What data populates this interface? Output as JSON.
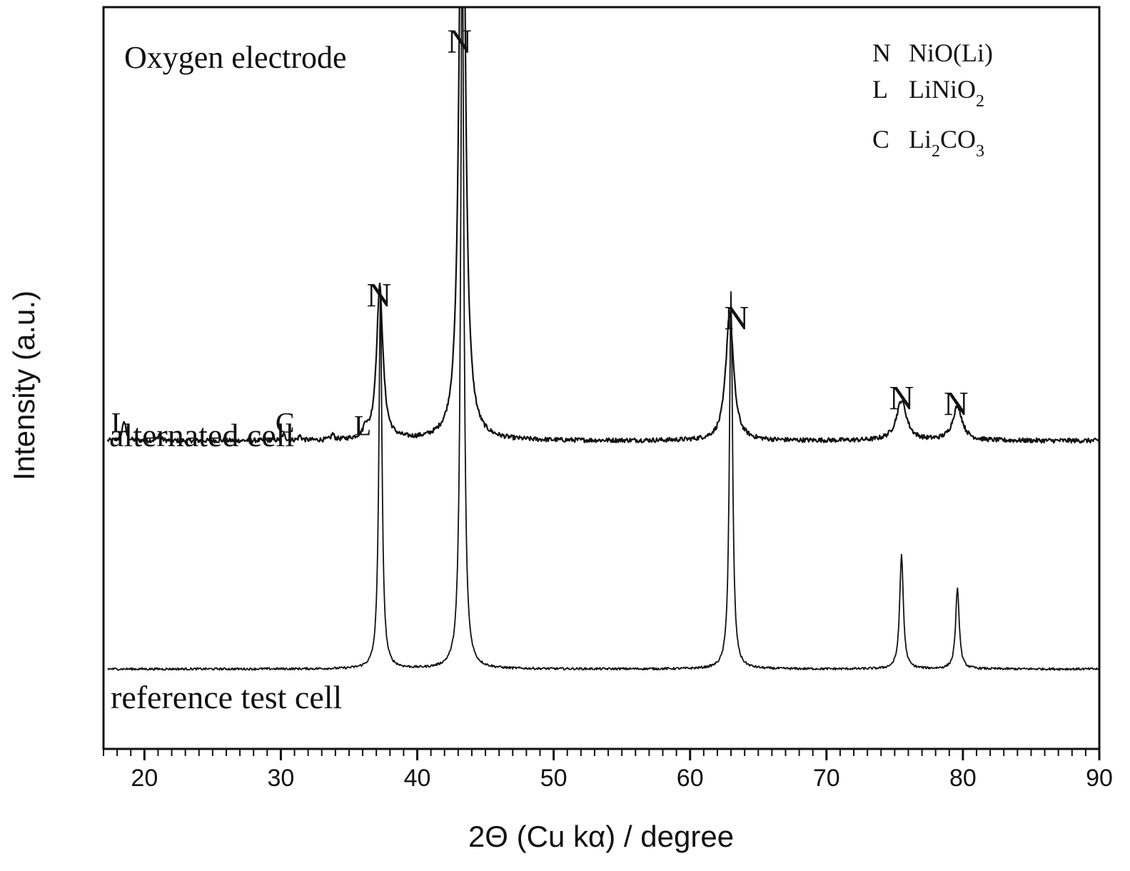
{
  "chart_data": {
    "type": "line",
    "title": "Oxygen electrode",
    "xlabel": "2Θ (Cu kα) / degree",
    "ylabel": "Intensity (a.u.)",
    "xlim": [
      17,
      90
    ],
    "ylim": [
      0,
      1.3
    ],
    "x_ticks": [
      20,
      30,
      40,
      50,
      60,
      70,
      80,
      90
    ],
    "x_minor_step": 1,
    "grid": false,
    "y_ticks_shown": false,
    "legend": {
      "placement": "top-right",
      "entries": [
        {
          "symbol": "N",
          "label": "NiO(Li)"
        },
        {
          "symbol": "L",
          "label": "LiNiO",
          "sub": "2"
        },
        {
          "symbol": "C",
          "label": "Li",
          "sub": "2",
          "label2": "CO",
          "sub2": "3"
        }
      ]
    },
    "series": [
      {
        "name": "alternated cell",
        "baseline": 0.54,
        "peaks": [
          {
            "x": 18.5,
            "height": 0.035,
            "width": 0.15,
            "label": "L"
          },
          {
            "x": 21.1,
            "height": 0.012,
            "width": 0.12
          },
          {
            "x": 30.2,
            "height": 0.01,
            "width": 0.15,
            "label": "C"
          },
          {
            "x": 31.4,
            "height": 0.008,
            "width": 0.12
          },
          {
            "x": 33.8,
            "height": 0.01,
            "width": 0.12
          },
          {
            "x": 36.2,
            "height": 0.018,
            "width": 0.15,
            "label": "L"
          },
          {
            "x": 37.25,
            "height": 0.27,
            "width": 0.28,
            "label": "N"
          },
          {
            "x": 43.3,
            "height": 1.33,
            "width": 0.24,
            "label": "N"
          },
          {
            "x": 62.9,
            "height": 0.225,
            "width": 0.34,
            "label": "N"
          },
          {
            "x": 75.5,
            "height": 0.07,
            "width": 0.45,
            "label": "N"
          },
          {
            "x": 79.6,
            "height": 0.06,
            "width": 0.42,
            "label": "N"
          }
        ]
      },
      {
        "name": "reference test cell",
        "baseline": 0.14,
        "peaks": [
          {
            "x": 37.3,
            "height": 0.65,
            "width": 0.14
          },
          {
            "x": 43.3,
            "height": 1.3,
            "width": 0.14
          },
          {
            "x": 63.0,
            "height": 0.66,
            "width": 0.14
          },
          {
            "x": 75.5,
            "height": 0.2,
            "width": 0.16
          },
          {
            "x": 79.6,
            "height": 0.14,
            "width": 0.16
          }
        ]
      }
    ],
    "annotations": [
      {
        "text": "N",
        "x": 37.2,
        "y": 0.775
      },
      {
        "text": "N",
        "x": 43.1,
        "y": 1.22
      },
      {
        "text": "N",
        "x": 63.4,
        "y": 0.735
      },
      {
        "text": "N",
        "x": 75.5,
        "y": 0.595
      },
      {
        "text": "N",
        "x": 79.5,
        "y": 0.585
      },
      {
        "text": "L",
        "x": 18.2,
        "y": 0.555
      },
      {
        "text": "C",
        "x": 30.3,
        "y": 0.555
      },
      {
        "text": "L",
        "x": 36.0,
        "y": 0.55
      }
    ]
  }
}
